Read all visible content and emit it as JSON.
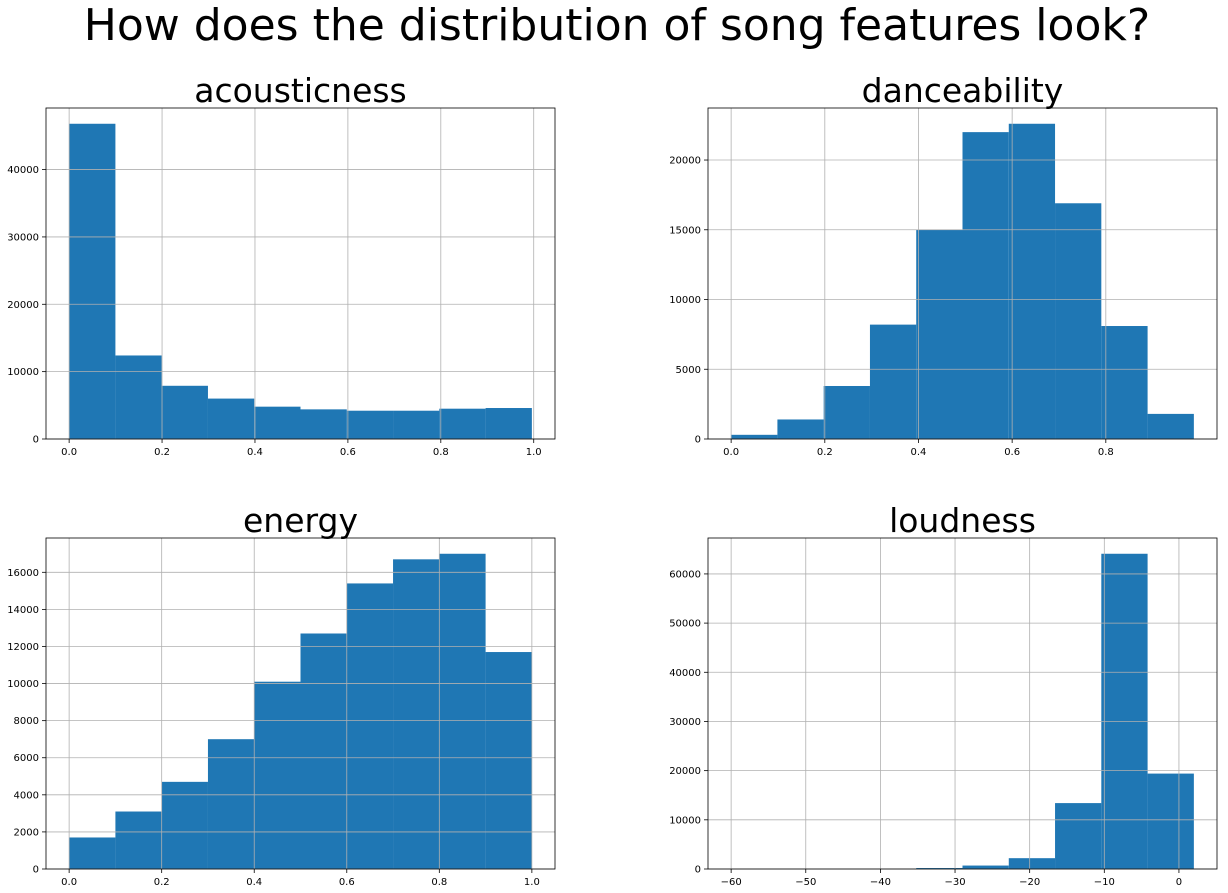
{
  "figure": {
    "suptitle": "How does the distribution of song features look?",
    "bar_color": "#1f77b4",
    "grid_color": "#b0b0b0"
  },
  "chart_data": [
    {
      "type": "bar",
      "title": "acousticness",
      "xlabel": "",
      "ylabel": "",
      "grid": true,
      "bin_edges": [
        0.0,
        0.0996,
        0.1992,
        0.2988,
        0.3984,
        0.498,
        0.5976,
        0.6972,
        0.7968,
        0.8964,
        0.996
      ],
      "values": [
        46800,
        12400,
        7900,
        6000,
        4800,
        4400,
        4200,
        4200,
        4500,
        4600
      ],
      "xlim": [
        -0.0498,
        1.0458
      ],
      "ylim": [
        0,
        49140
      ],
      "xticks": [
        0.0,
        0.2,
        0.4,
        0.6,
        0.8,
        1.0
      ],
      "xtick_labels": [
        "0.0",
        "0.2",
        "0.4",
        "0.6",
        "0.8",
        "1.0"
      ],
      "yticks": [
        0,
        10000,
        20000,
        30000,
        40000
      ],
      "ytick_labels": [
        "0",
        "10000",
        "20000",
        "30000",
        "40000"
      ]
    },
    {
      "type": "bar",
      "title": "danceability",
      "xlabel": "",
      "ylabel": "",
      "grid": true,
      "bin_edges": [
        0.0,
        0.0988,
        0.1976,
        0.2964,
        0.3952,
        0.494,
        0.5928,
        0.6916,
        0.7904,
        0.8892,
        0.988
      ],
      "values": [
        300,
        1400,
        3800,
        8200,
        15000,
        22000,
        22600,
        16900,
        8100,
        1800
      ],
      "xlim": [
        -0.0494,
        1.0374
      ],
      "ylim": [
        0,
        23730
      ],
      "xticks": [
        0.0,
        0.2,
        0.4,
        0.6,
        0.8
      ],
      "xtick_labels": [
        "0.0",
        "0.2",
        "0.4",
        "0.6",
        "0.8"
      ],
      "yticks": [
        0,
        5000,
        10000,
        15000,
        20000
      ],
      "ytick_labels": [
        "0",
        "5000",
        "10000",
        "15000",
        "20000"
      ]
    },
    {
      "type": "bar",
      "title": "energy",
      "xlabel": "",
      "ylabel": "",
      "grid": true,
      "bin_edges": [
        0.0,
        0.1,
        0.2,
        0.3,
        0.4,
        0.5,
        0.6,
        0.7,
        0.8,
        0.9,
        1.0
      ],
      "values": [
        1700,
        3100,
        4700,
        7000,
        10100,
        12700,
        15400,
        16700,
        17000,
        11700
      ],
      "xlim": [
        -0.05,
        1.05
      ],
      "ylim": [
        0,
        17850
      ],
      "xticks": [
        0.0,
        0.2,
        0.4,
        0.6,
        0.8,
        1.0
      ],
      "xtick_labels": [
        "0.0",
        "0.2",
        "0.4",
        "0.6",
        "0.8",
        "1.0"
      ],
      "yticks": [
        0,
        2000,
        4000,
        6000,
        8000,
        10000,
        12000,
        14000,
        16000
      ],
      "ytick_labels": [
        "0",
        "2000",
        "4000",
        "6000",
        "8000",
        "10000",
        "12000",
        "14000",
        "16000"
      ]
    },
    {
      "type": "bar",
      "title": "loudness",
      "xlabel": "",
      "ylabel": "",
      "grid": true,
      "bin_edges": [
        -60.0,
        -53.8,
        -47.6,
        -41.4,
        -35.2,
        -29.0,
        -22.8,
        -16.6,
        -10.4,
        -4.2,
        2.0
      ],
      "values": [
        0,
        0,
        0,
        30,
        200,
        700,
        2200,
        13400,
        64100,
        19400
      ],
      "xlim": [
        -63.1,
        5.1
      ],
      "ylim": [
        0,
        67305
      ],
      "xticks": [
        -60,
        -50,
        -40,
        -30,
        -20,
        -10,
        0
      ],
      "xtick_labels": [
        "−60",
        "−50",
        "−40",
        "−30",
        "−20",
        "−10",
        "0"
      ],
      "yticks": [
        0,
        10000,
        20000,
        30000,
        40000,
        50000,
        60000
      ],
      "ytick_labels": [
        "0",
        "10000",
        "20000",
        "30000",
        "40000",
        "50000",
        "60000"
      ]
    }
  ]
}
